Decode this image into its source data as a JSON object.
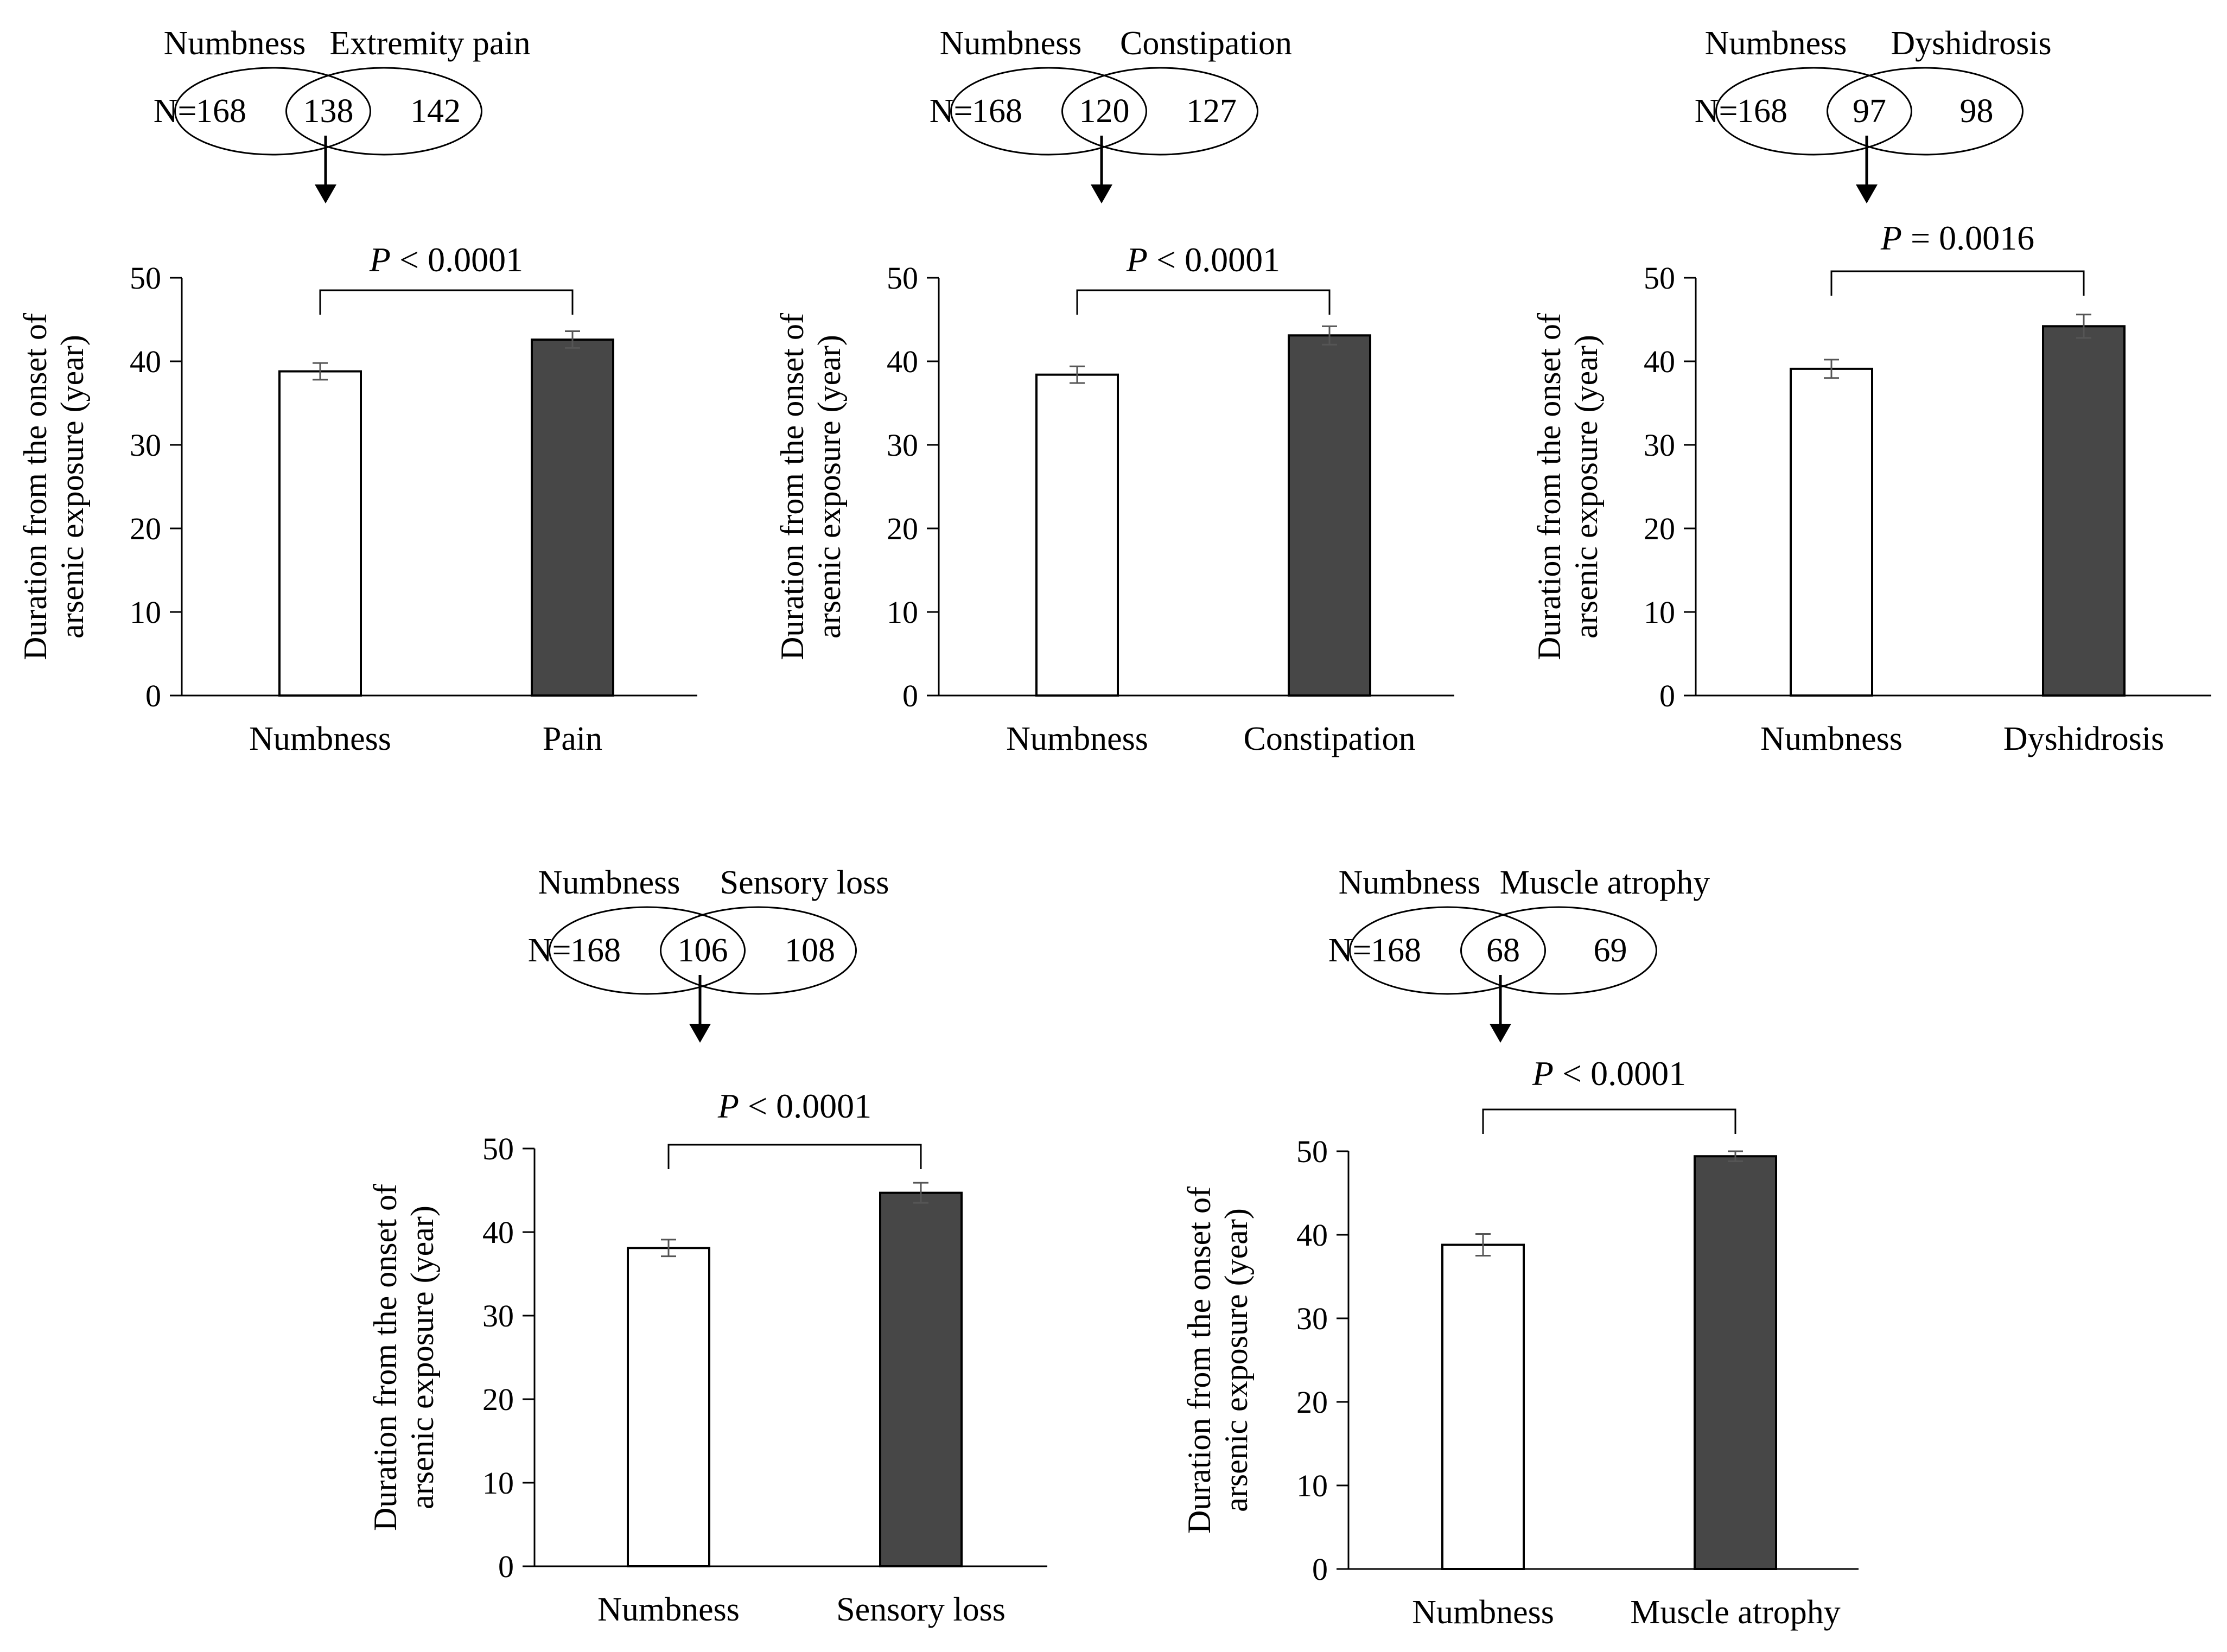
{
  "figure": {
    "venn_prefix": "N=",
    "p_symbol": "P"
  },
  "chart_data": [
    {
      "type": "bar",
      "title": "",
      "venn": {
        "left_label": "Numbness",
        "right_label": "Extremity pain",
        "n_left": "168",
        "n_overlap": "138",
        "n_right": "142"
      },
      "categories": [
        "Numbness",
        "Pain"
      ],
      "values": [
        38.8,
        42.6
      ],
      "errors": [
        1.0,
        1.0
      ],
      "colors": [
        "#ffffff",
        "#474747"
      ],
      "xlabel": "",
      "ylabel_line1": "Duration from the onset of",
      "ylabel_line2": "arsenic exposure (year)",
      "ylim": [
        0,
        50
      ],
      "yticks": [
        0,
        10,
        20,
        30,
        40,
        50
      ],
      "p_text": " < 0.0001",
      "grid": false
    },
    {
      "type": "bar",
      "title": "",
      "venn": {
        "left_label": "Numbness",
        "right_label": "Constipation",
        "n_left": "168",
        "n_overlap": "120",
        "n_right": "127"
      },
      "categories": [
        "Numbness",
        "Constipation"
      ],
      "values": [
        38.4,
        43.1
      ],
      "errors": [
        1.0,
        1.1
      ],
      "colors": [
        "#ffffff",
        "#474747"
      ],
      "xlabel": "",
      "ylabel_line1": "Duration from the onset of",
      "ylabel_line2": "arsenic exposure (year)",
      "ylim": [
        0,
        50
      ],
      "yticks": [
        0,
        10,
        20,
        30,
        40,
        50
      ],
      "p_text": " < 0.0001",
      "grid": false
    },
    {
      "type": "bar",
      "title": "",
      "venn": {
        "left_label": "Numbness",
        "right_label": "Dyshidrosis",
        "n_left": "168",
        "n_overlap": "97",
        "n_right": "98"
      },
      "categories": [
        "Numbness",
        "Dyshidrosis"
      ],
      "values": [
        39.1,
        44.2
      ],
      "errors": [
        1.1,
        1.4
      ],
      "colors": [
        "#ffffff",
        "#474747"
      ],
      "xlabel": "",
      "ylabel_line1": "Duration from the onset of",
      "ylabel_line2": "arsenic exposure (year)",
      "ylim": [
        0,
        50
      ],
      "yticks": [
        0,
        10,
        20,
        30,
        40,
        50
      ],
      "p_text": " = 0.0016",
      "grid": false
    },
    {
      "type": "bar",
      "title": "",
      "venn": {
        "left_label": "Numbness",
        "right_label": "Sensory loss",
        "n_left": "168",
        "n_overlap": "106",
        "n_right": "108"
      },
      "categories": [
        "Numbness",
        "Sensory loss"
      ],
      "values": [
        38.1,
        44.7
      ],
      "errors": [
        1.0,
        1.2
      ],
      "colors": [
        "#ffffff",
        "#474747"
      ],
      "xlabel": "",
      "ylabel_line1": "Duration from the onset of",
      "ylabel_line2": "arsenic exposure (year)",
      "ylim": [
        0,
        50
      ],
      "yticks": [
        0,
        10,
        20,
        30,
        40,
        50
      ],
      "p_text": " < 0.0001",
      "grid": false
    },
    {
      "type": "bar",
      "title": "",
      "venn": {
        "left_label": "Numbness",
        "right_label": "Muscle atrophy",
        "n_left": "168",
        "n_overlap": "68",
        "n_right": "69"
      },
      "categories": [
        "Numbness",
        "Muscle atrophy"
      ],
      "values": [
        38.8,
        49.4
      ],
      "errors": [
        1.3,
        0.6
      ],
      "colors": [
        "#ffffff",
        "#474747"
      ],
      "xlabel": "",
      "ylabel_line1": "Duration from the onset of",
      "ylabel_line2": "arsenic exposure (year)",
      "ylim": [
        0,
        50
      ],
      "yticks": [
        0,
        10,
        20,
        30,
        40,
        50
      ],
      "p_text": " < 0.0001",
      "grid": false
    }
  ]
}
